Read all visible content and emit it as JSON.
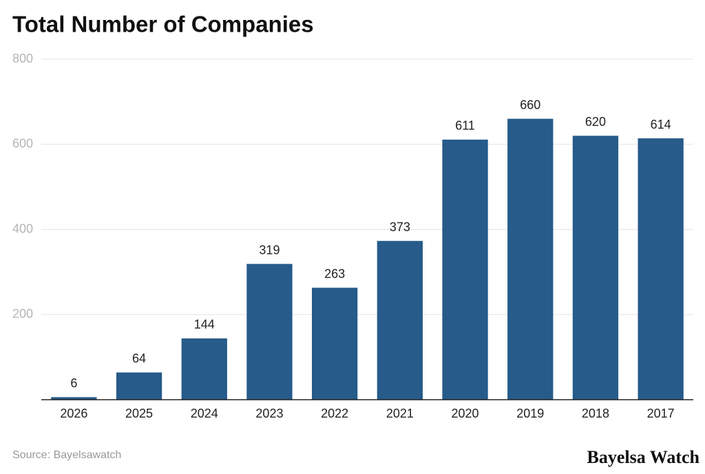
{
  "chart_data": {
    "type": "bar",
    "title": "Total Number of Companies",
    "categories": [
      "2026",
      "2025",
      "2024",
      "2023",
      "2022",
      "2021",
      "2020",
      "2019",
      "2018",
      "2017"
    ],
    "values": [
      6,
      64,
      144,
      319,
      263,
      373,
      611,
      660,
      620,
      614
    ],
    "color": "#265b8a",
    "ylim": [
      0,
      800
    ],
    "yticks": [
      200,
      400,
      600,
      800
    ],
    "grid": true,
    "source": "Source: Bayelsawatch",
    "brand": "Bayelsa Watch"
  }
}
